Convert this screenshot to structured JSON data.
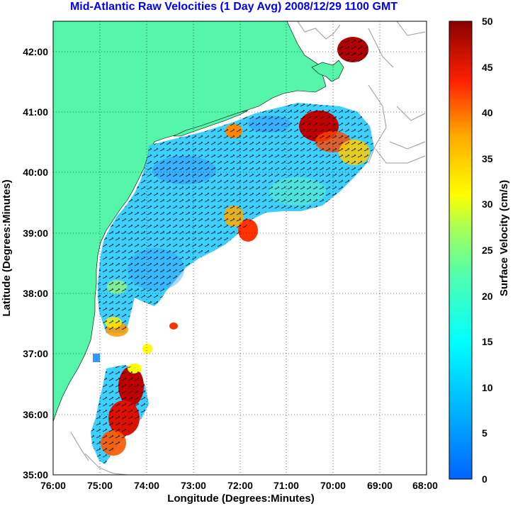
{
  "title": "Mid-Atlantic Raw Velocities (1 Day Avg) 2008/12/29 1100 GMT",
  "x_axis": {
    "label": "Longitude (Degrees:Minutes)",
    "ticks": [
      "76:00",
      "75:00",
      "74:00",
      "73:00",
      "72:00",
      "71:00",
      "70:00",
      "69:00",
      "68:00"
    ]
  },
  "y_axis": {
    "label": "Latitude (Degrees:Minutes)",
    "ticks": [
      "42:00",
      "41:00",
      "40:00",
      "39:00",
      "38:00",
      "37:00",
      "36:00",
      "35:00"
    ]
  },
  "colorbar": {
    "label": "Surface Velocity (cm/s)",
    "ticks": [
      "50",
      "45",
      "40",
      "35",
      "30",
      "25",
      "20",
      "15",
      "10",
      "5",
      "0"
    ],
    "min": 0,
    "max": 50,
    "colormap": "jet"
  },
  "colors": {
    "land": "#55f5aa",
    "bathymetry": "#999999",
    "title": "#0000ee"
  },
  "map": {
    "lon_range": [
      -76,
      -68
    ],
    "lat_range": [
      35,
      42.5
    ],
    "grid": true
  }
}
